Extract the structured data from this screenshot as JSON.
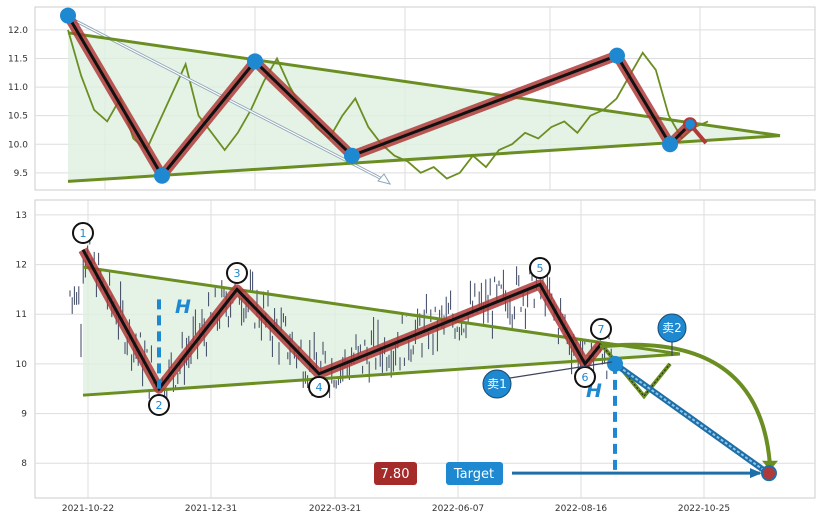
{
  "chart_data": [
    {
      "type": "line",
      "ylim": [
        9.2,
        12.4
      ],
      "y_ticks": [
        "9.5",
        "10.0",
        "10.5",
        "11.0",
        "11.5",
        "12.0"
      ],
      "grid": true,
      "series": [
        {
          "values": [
            12.0,
            11.2,
            10.6,
            10.4,
            10.8,
            10.1,
            9.9,
            10.4,
            10.9,
            11.4,
            10.5,
            10.2,
            9.9,
            10.2,
            10.6,
            11.1,
            11.5,
            11.0,
            10.6,
            10.3,
            10.1,
            10.5,
            10.8,
            10.3,
            10.0,
            9.8,
            9.7,
            9.5,
            9.6,
            9.4,
            9.5,
            9.8,
            9.6,
            9.9,
            10.0,
            10.2,
            10.1,
            10.3,
            10.4,
            10.2,
            10.5,
            10.6,
            10.8,
            11.2,
            11.6,
            11.3,
            10.5,
            10.1,
            10.3,
            10.4
          ]
        }
      ],
      "zigzag_points": [
        12.25,
        9.45,
        11.45,
        9.8,
        11.55,
        10.0,
        10.35
      ],
      "trendline_upper": [
        11.95,
        10.15
      ],
      "trendline_lower": [
        9.35,
        10.15
      ]
    },
    {
      "type": "candlestick",
      "x_ticks": [
        "2021-10-22",
        "2021-12-31",
        "2022-03-21",
        "2022-06-07",
        "2022-08-16",
        "2022-10-25"
      ],
      "y_ticks": [
        "8",
        "9",
        "10",
        "11",
        "12",
        "13"
      ],
      "ylim": [
        7.3,
        13.3
      ],
      "grid": true,
      "zigzag_labels": [
        "1",
        "2",
        "3",
        "4",
        "5",
        "6",
        "7"
      ],
      "zigzag_values": [
        12.3,
        9.5,
        11.5,
        9.8,
        11.6,
        10.0,
        10.4
      ],
      "height_label": "H",
      "sell_labels": [
        "卖1",
        "卖2"
      ],
      "price_badge": "7.80",
      "target_badge": "Target",
      "target_value": 7.8
    }
  ],
  "colors": {
    "zigzag_outer": "#b03a3a",
    "zigzag_inner": "#111111",
    "trendline": "#6b8e23",
    "triangle_fill": "#dff0e0",
    "marker_blue": "#1e88d0",
    "price_badge_bg": "#a52a2a",
    "target_badge_bg": "#1e88d0",
    "candle": "#3a4560"
  }
}
